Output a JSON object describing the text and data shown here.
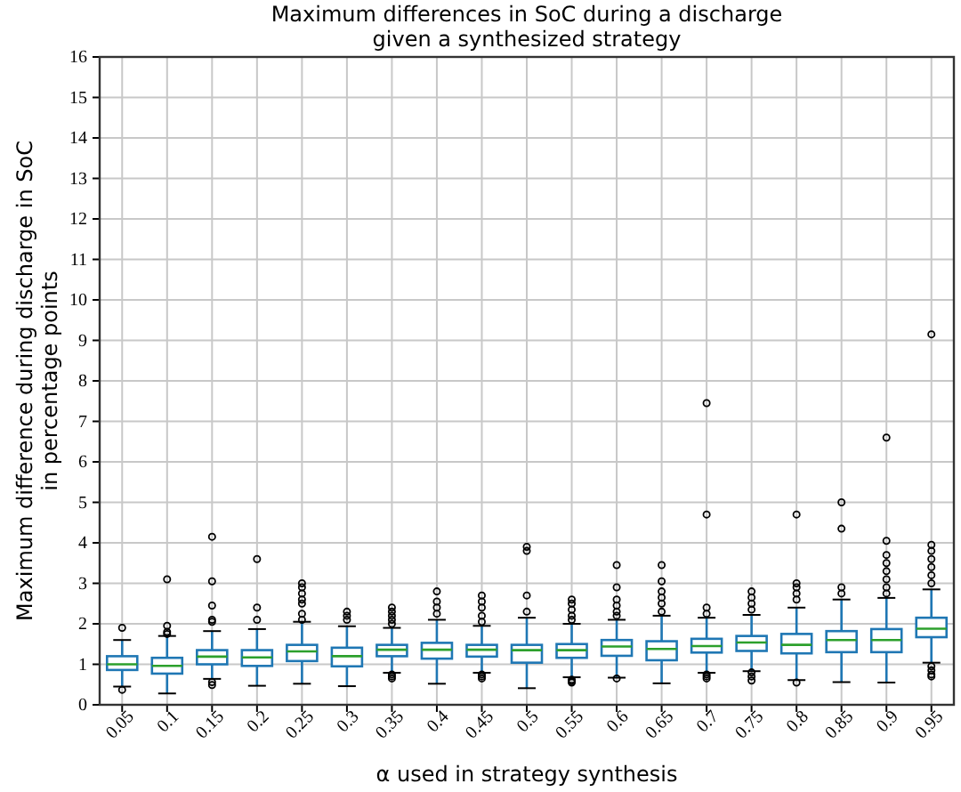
{
  "chart_data": {
    "type": "box",
    "title": "Maximum differences in SoC during a discharge\ngiven a synthesized strategy",
    "xlabel": "α used in strategy synthesis",
    "ylabel": "Maximum difference during discharge in SoC\nin percentage points",
    "categories": [
      "0.05",
      "0.1",
      "0.15",
      "0.2",
      "0.25",
      "0.3",
      "0.35",
      "0.4",
      "0.45",
      "0.5",
      "0.55",
      "0.6",
      "0.65",
      "0.7",
      "0.75",
      "0.8",
      "0.85",
      "0.9",
      "0.95"
    ],
    "boxes": [
      {
        "low": 0.45,
        "q1": 0.86,
        "median": 1.0,
        "q3": 1.2,
        "high": 1.6,
        "outliers": [
          0.37,
          1.9
        ]
      },
      {
        "low": 0.28,
        "q1": 0.77,
        "median": 0.96,
        "q3": 1.16,
        "high": 1.7,
        "outliers": [
          1.75,
          1.8,
          1.95,
          3.1
        ]
      },
      {
        "low": 0.64,
        "q1": 1.0,
        "median": 1.19,
        "q3": 1.35,
        "high": 1.82,
        "outliers": [
          0.56,
          0.49,
          2.05,
          2.1,
          2.45,
          3.05,
          4.15
        ]
      },
      {
        "low": 0.47,
        "q1": 0.96,
        "median": 1.17,
        "q3": 1.35,
        "high": 1.87,
        "outliers": [
          2.1,
          2.4,
          3.6
        ]
      },
      {
        "low": 0.52,
        "q1": 1.08,
        "median": 1.32,
        "q3": 1.48,
        "high": 2.05,
        "outliers": [
          2.1,
          2.25,
          2.5,
          2.6,
          2.75,
          2.9,
          3.0
        ]
      },
      {
        "low": 0.46,
        "q1": 0.95,
        "median": 1.2,
        "q3": 1.41,
        "high": 1.94,
        "outliers": [
          2.1,
          2.2,
          2.3
        ]
      },
      {
        "low": 0.79,
        "q1": 1.2,
        "median": 1.36,
        "q3": 1.48,
        "high": 1.9,
        "outliers": [
          0.75,
          0.7,
          0.65,
          2.0,
          2.1,
          2.2,
          2.3,
          2.4
        ]
      },
      {
        "low": 0.52,
        "q1": 1.14,
        "median": 1.36,
        "q3": 1.53,
        "high": 2.1,
        "outliers": [
          2.25,
          2.4,
          2.55,
          2.8
        ]
      },
      {
        "low": 0.79,
        "q1": 1.19,
        "median": 1.36,
        "q3": 1.48,
        "high": 1.95,
        "outliers": [
          0.75,
          0.7,
          0.65,
          2.05,
          2.2,
          2.4,
          2.55,
          2.7
        ]
      },
      {
        "low": 0.41,
        "q1": 1.04,
        "median": 1.35,
        "q3": 1.48,
        "high": 2.15,
        "outliers": [
          2.3,
          2.7,
          3.8,
          3.9
        ]
      },
      {
        "low": 0.68,
        "q1": 1.16,
        "median": 1.35,
        "q3": 1.5,
        "high": 2.0,
        "outliers": [
          0.62,
          0.58,
          0.55,
          2.1,
          2.2,
          2.35,
          2.5,
          2.6
        ]
      },
      {
        "low": 0.67,
        "q1": 1.21,
        "median": 1.44,
        "q3": 1.6,
        "high": 2.1,
        "outliers": [
          0.65,
          2.2,
          2.3,
          2.45,
          2.6,
          2.9,
          3.45
        ]
      },
      {
        "low": 0.53,
        "q1": 1.1,
        "median": 1.38,
        "q3": 1.57,
        "high": 2.2,
        "outliers": [
          2.3,
          2.5,
          2.65,
          2.8,
          3.05,
          3.45
        ]
      },
      {
        "low": 0.79,
        "q1": 1.29,
        "median": 1.45,
        "q3": 1.63,
        "high": 2.15,
        "outliers": [
          0.75,
          0.7,
          0.65,
          2.25,
          2.4,
          4.7,
          7.45
        ]
      },
      {
        "low": 0.83,
        "q1": 1.33,
        "median": 1.54,
        "q3": 1.7,
        "high": 2.22,
        "outliers": [
          0.8,
          0.7,
          0.6,
          2.35,
          2.5,
          2.65,
          2.8
        ]
      },
      {
        "low": 0.61,
        "q1": 1.27,
        "median": 1.48,
        "q3": 1.75,
        "high": 2.4,
        "outliers": [
          0.55,
          2.6,
          2.75,
          2.9,
          3.0,
          4.7
        ]
      },
      {
        "low": 0.56,
        "q1": 1.3,
        "median": 1.6,
        "q3": 1.82,
        "high": 2.6,
        "outliers": [
          2.75,
          2.9,
          4.35,
          5.0
        ]
      },
      {
        "low": 0.55,
        "q1": 1.3,
        "median": 1.6,
        "q3": 1.87,
        "high": 2.64,
        "outliers": [
          2.75,
          2.9,
          3.1,
          3.3,
          3.5,
          3.7,
          4.05,
          6.6
        ]
      },
      {
        "low": 1.04,
        "q1": 1.67,
        "median": 1.88,
        "q3": 2.15,
        "high": 2.85,
        "outliers": [
          0.95,
          0.85,
          0.75,
          0.7,
          3.0,
          3.2,
          3.4,
          3.6,
          3.8,
          3.95,
          9.15
        ]
      }
    ],
    "color": "#1f77b4",
    "ylim": [
      0,
      16
    ],
    "yticks": [
      0,
      1,
      2,
      3,
      4,
      5,
      6,
      7,
      8,
      9,
      10,
      11,
      12,
      13,
      14,
      15,
      16
    ],
    "grid": true
  }
}
